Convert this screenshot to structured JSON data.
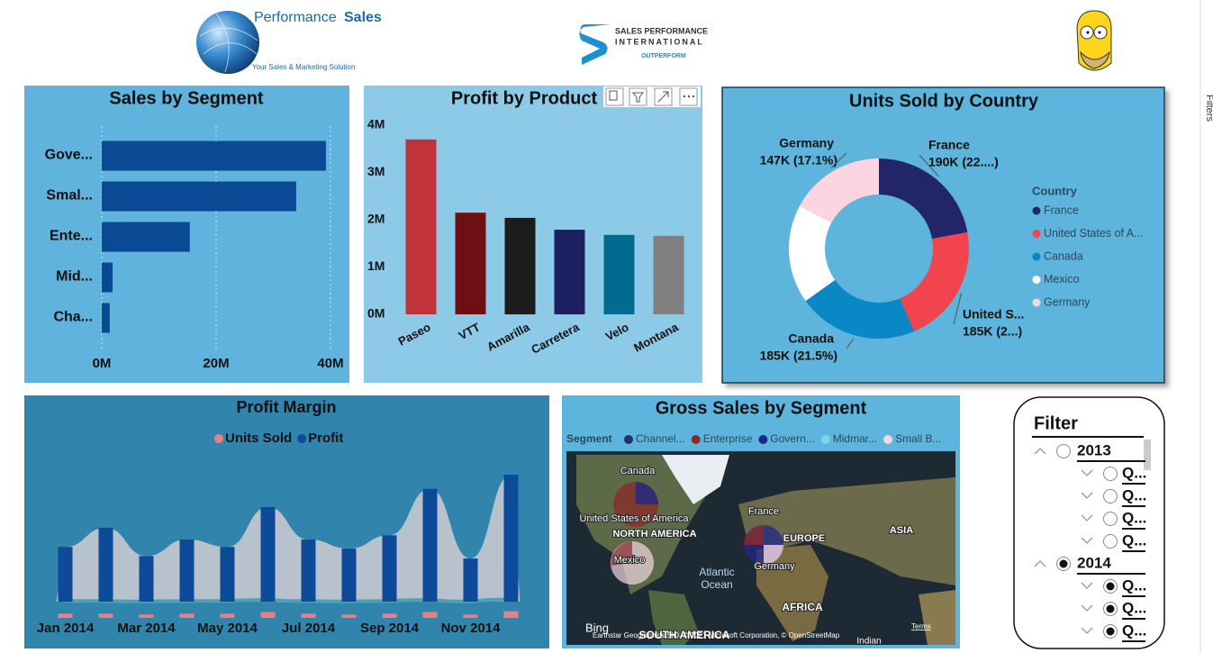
{
  "header": {
    "brand_light": "Performance",
    "brand_bold": "Sales",
    "tagline": "Your Sales & Marketing Solution",
    "spi_line1": "SALES PERFORMANCE",
    "spi_line2": "INTERNATIONAL",
    "spi_line3": "OUTPERFORM"
  },
  "chart_data": [
    {
      "type": "bar",
      "orientation": "horizontal",
      "title": "Sales by Segment",
      "categories": [
        "Gove...",
        "Smal...",
        "Ente...",
        "Mid...",
        "Cha..."
      ],
      "values": [
        39200000,
        34000000,
        15400000,
        1900000,
        1400000
      ],
      "color": "#0a4a94",
      "xlim": [
        0,
        40000000
      ],
      "xticks": [
        {
          "value": 0,
          "label": "0M"
        },
        {
          "value": 20000000,
          "label": "20M"
        },
        {
          "value": 40000000,
          "label": "40M"
        }
      ],
      "grid": true
    },
    {
      "type": "bar",
      "orientation": "vertical",
      "title": "Profit by Product",
      "categories": [
        "Paseo",
        "VTT",
        "Amarilla",
        "Carretera",
        "Velo",
        "Montana"
      ],
      "values": [
        3700000,
        2150000,
        2040000,
        1790000,
        1680000,
        1660000
      ],
      "colors": [
        "#c1333a",
        "#6d0f13",
        "#1c1c1c",
        "#1d2060",
        "#006b8f",
        "#7f7f7f"
      ],
      "ylim": [
        0,
        4000000
      ],
      "yticks": [
        {
          "value": 0,
          "label": "0M"
        },
        {
          "value": 1000000,
          "label": "1M"
        },
        {
          "value": 2000000,
          "label": "2M"
        },
        {
          "value": 3000000,
          "label": "3M"
        },
        {
          "value": 4000000,
          "label": "4M"
        }
      ],
      "grid": false
    },
    {
      "type": "donut",
      "title": "Units Sold by Country",
      "legend_title": "Country",
      "categories": [
        "France",
        "United States of A...",
        "Canada",
        "Mexico",
        "Germany"
      ],
      "slice_labels": [
        "France",
        "United S...",
        "Canada",
        null,
        "Germany"
      ],
      "values": [
        190000,
        185000,
        185000,
        153000,
        147000
      ],
      "value_labels": [
        "190K (22....)",
        "185K (2...)",
        "185K (21.5%)",
        null,
        "147K (17.1%)"
      ],
      "colors": [
        "#23256b",
        "#f1444f",
        "#0a87c5",
        "#ffffff",
        "#fcd5e1"
      ],
      "legend": "right"
    },
    {
      "type": "ribbon",
      "title": "Profit Margin",
      "categories": [
        "Jan 2014",
        null,
        "Mar 2014",
        null,
        "May 2014",
        null,
        "Jul 2014",
        null,
        "Sep 2014",
        null,
        "Nov 2014",
        null
      ],
      "series": [
        {
          "name": "Units Sold",
          "color": "#f07c82",
          "values": [
            50,
            50,
            40,
            50,
            50,
            70,
            50,
            40,
            50,
            70,
            40,
            80
          ]
        },
        {
          "name": "Profit",
          "color": "#0d4b9a",
          "values": [
            660,
            890,
            550,
            750,
            660,
            1140,
            750,
            640,
            800,
            1360,
            520,
            1530
          ]
        }
      ],
      "legend": "top"
    }
  ],
  "map": {
    "title": "Gross Sales by Segment",
    "legend_title": "Segment",
    "legend": [
      {
        "name": "Channel...",
        "color": "#27306e"
      },
      {
        "name": "Enterprise",
        "color": "#8b2a2a"
      },
      {
        "name": "Govern...",
        "color": "#22288a"
      },
      {
        "name": "Midmar...",
        "color": "#7fd3e6"
      },
      {
        "name": "Small B...",
        "color": "#f3d7e2"
      }
    ],
    "places": [
      "Canada",
      "United States of America",
      "NORTH AMERICA",
      "Mexico",
      "France",
      "EUROPE",
      "Germany",
      "ASIA",
      "Atlantic Ocean",
      "AFRICA",
      "SOUTH AMERICA",
      "Indian"
    ],
    "logo": "Bing",
    "attribution": "Earthstar Geographics SIO, © 2021 Microsoft Corporation, © OpenStreetMap",
    "terms": "Terms"
  },
  "filter": {
    "title": "Filter",
    "items": [
      {
        "label": "2013",
        "level": 0,
        "selected": false
      },
      {
        "label": "Q...",
        "level": 1,
        "selected": false
      },
      {
        "label": "Q...",
        "level": 1,
        "selected": false
      },
      {
        "label": "Q...",
        "level": 1,
        "selected": false
      },
      {
        "label": "Q...",
        "level": 1,
        "selected": false
      },
      {
        "label": "2014",
        "level": 0,
        "selected": true
      },
      {
        "label": "Q...",
        "level": 1,
        "selected": true
      },
      {
        "label": "Q...",
        "level": 1,
        "selected": true
      },
      {
        "label": "Q...",
        "level": 1,
        "selected": true
      }
    ]
  },
  "side_pane": {
    "label": "Filters"
  }
}
